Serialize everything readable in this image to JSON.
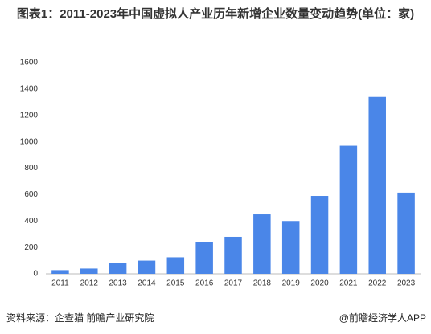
{
  "chart_data": {
    "type": "bar",
    "title": "图表1：2011-2023年中国虚拟人产业历年新增企业数量变动趋势(单位：家)",
    "categories": [
      "2011",
      "2012",
      "2013",
      "2014",
      "2015",
      "2016",
      "2017",
      "2018",
      "2019",
      "2020",
      "2021",
      "2022",
      "2023"
    ],
    "values": [
      28,
      40,
      80,
      100,
      125,
      240,
      280,
      450,
      400,
      590,
      970,
      1340,
      615
    ],
    "color": "#4a86e8",
    "ylim": [
      0,
      1600
    ],
    "yticks": [
      0,
      200,
      400,
      600,
      800,
      1000,
      1200,
      1400,
      1600
    ],
    "grid": false,
    "source": "资料来源：企查猫 前瞻产业研究院",
    "credit": "@前瞻经济学人APP"
  }
}
